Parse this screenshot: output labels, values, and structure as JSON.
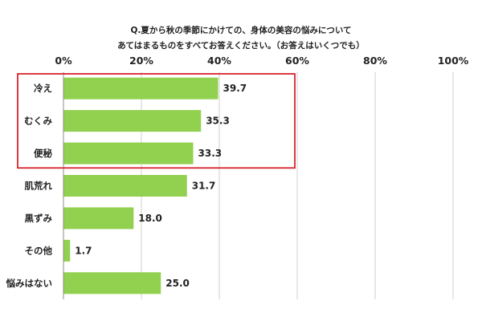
{
  "chart_data": {
    "type": "bar",
    "orientation": "horizontal",
    "title_lines": [
      "Q.夏から秋の季節にかけての、身体の美容の悩みについて",
      "あてはまるものをすべてお答えください。（お答えはいくつでも）"
    ],
    "categories": [
      "冷え",
      "むくみ",
      "便秘",
      "肌荒れ",
      "黒ずみ",
      "その他",
      "悩みはない"
    ],
    "values": [
      39.7,
      35.3,
      33.3,
      31.7,
      18.0,
      1.7,
      25.0
    ],
    "value_labels": [
      "39.7",
      "35.3",
      "33.3",
      "31.7",
      "18.0",
      "1.7",
      "25.0"
    ],
    "xlim": [
      0,
      100
    ],
    "x_ticks": [
      "0%",
      "20%",
      "40%",
      "60%",
      "80%",
      "100%"
    ],
    "grid": true,
    "bar_color": "#92d050",
    "highlight": {
      "categories": [
        "冷え",
        "むくみ",
        "便秘"
      ],
      "color": "#d9232e"
    }
  }
}
